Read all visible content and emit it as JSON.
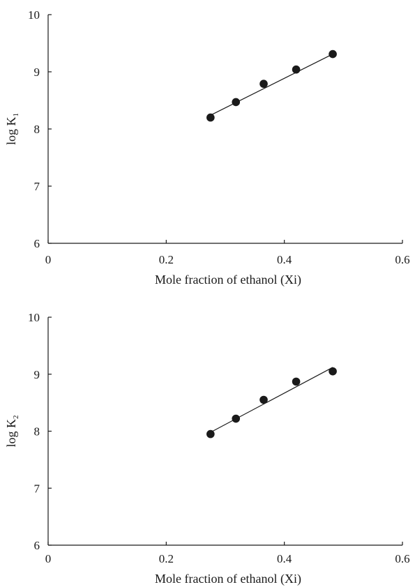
{
  "chart_data": [
    {
      "type": "scatter",
      "xlabel": "Mole fraction of ethanol (Xi)",
      "ylabel": "log K",
      "ylabel_subscript": "1",
      "xlim": [
        0,
        0.6
      ],
      "ylim": [
        6,
        10
      ],
      "x_ticks": [
        "0",
        "0.2",
        "0.4",
        "0.6"
      ],
      "y_ticks": [
        "6",
        "7",
        "8",
        "9",
        "10"
      ],
      "grid": false,
      "legend": "none",
      "marker_color": "#1a1a1a",
      "series": [
        {
          "x": [
            0.275,
            0.318,
            0.365,
            0.42,
            0.482
          ],
          "y": [
            8.2,
            8.47,
            8.79,
            9.04,
            9.31
          ],
          "fit_line": {
            "x": [
              0.275,
              0.482
            ],
            "y": [
              8.24,
              9.31
            ]
          }
        }
      ]
    },
    {
      "type": "scatter",
      "xlabel": "Mole fraction of ethanol (Xi)",
      "ylabel": "log K",
      "ylabel_subscript": "2",
      "xlim": [
        0,
        0.6
      ],
      "ylim": [
        6,
        10
      ],
      "x_ticks": [
        "0",
        "0.2",
        "0.4",
        "0.6"
      ],
      "y_ticks": [
        "6",
        "7",
        "8",
        "9",
        "10"
      ],
      "grid": false,
      "legend": "none",
      "marker_color": "#1a1a1a",
      "series": [
        {
          "x": [
            0.275,
            0.318,
            0.365,
            0.42,
            0.482
          ],
          "y": [
            7.95,
            8.22,
            8.55,
            8.87,
            9.05
          ],
          "fit_line": {
            "x": [
              0.275,
              0.482
            ],
            "y": [
              7.98,
              9.12
            ]
          }
        }
      ]
    }
  ]
}
